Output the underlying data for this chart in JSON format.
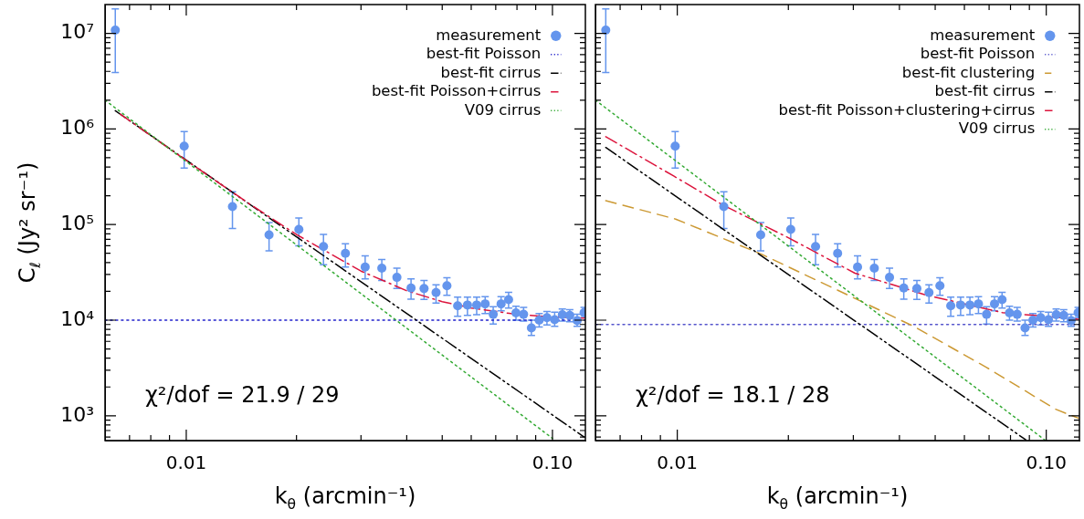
{
  "chart_data": [
    {
      "type": "scatter",
      "xlabel": "k$_{θ}$ (arcmin⁻¹)",
      "ylabel": "C$_{ℓ}$ (Jy² sr⁻¹)",
      "log": "xy",
      "xlim": [
        0.006,
        0.123
      ],
      "ylim": [
        550,
        20000000
      ],
      "xticks": [
        {
          "value": 0.007,
          "label": null
        },
        {
          "value": 0.008,
          "label": null
        },
        {
          "value": 0.009,
          "label": null
        },
        {
          "value": 0.01,
          "label": "0.01"
        },
        {
          "value": 0.02,
          "label": null
        },
        {
          "value": 0.03,
          "label": null
        },
        {
          "value": 0.04,
          "label": null
        },
        {
          "value": 0.05,
          "label": null
        },
        {
          "value": 0.06,
          "label": null
        },
        {
          "value": 0.07,
          "label": null
        },
        {
          "value": 0.08,
          "label": null
        },
        {
          "value": 0.09,
          "label": null
        },
        {
          "value": 0.1,
          "label": "0.10"
        }
      ],
      "yticks": [
        {
          "value": 600,
          "label": null
        },
        {
          "value": 700,
          "label": null
        },
        {
          "value": 800,
          "label": null
        },
        {
          "value": 900,
          "label": null
        },
        {
          "value": 1000,
          "label": "10³"
        },
        {
          "value": 2000,
          "label": null
        },
        {
          "value": 3000,
          "label": null
        },
        {
          "value": 4000,
          "label": null
        },
        {
          "value": 5000,
          "label": null
        },
        {
          "value": 6000,
          "label": null
        },
        {
          "value": 7000,
          "label": null
        },
        {
          "value": 8000,
          "label": null
        },
        {
          "value": 9000,
          "label": null
        },
        {
          "value": 10000,
          "label": "10⁴"
        },
        {
          "value": 20000,
          "label": null
        },
        {
          "value": 30000,
          "label": null
        },
        {
          "value": 40000,
          "label": null
        },
        {
          "value": 50000,
          "label": null
        },
        {
          "value": 60000,
          "label": null
        },
        {
          "value": 70000,
          "label": null
        },
        {
          "value": 80000,
          "label": null
        },
        {
          "value": 90000,
          "label": null
        },
        {
          "value": 100000,
          "label": "10⁵"
        },
        {
          "value": 200000,
          "label": null
        },
        {
          "value": 300000,
          "label": null
        },
        {
          "value": 400000,
          "label": null
        },
        {
          "value": 500000,
          "label": null
        },
        {
          "value": 600000,
          "label": null
        },
        {
          "value": 700000,
          "label": null
        },
        {
          "value": 800000,
          "label": null
        },
        {
          "value": 900000,
          "label": null
        },
        {
          "value": 1000000,
          "label": "10⁶"
        },
        {
          "value": 2000000,
          "label": null
        },
        {
          "value": 3000000,
          "label": null
        },
        {
          "value": 4000000,
          "label": null
        },
        {
          "value": 5000000,
          "label": null
        },
        {
          "value": 6000000,
          "label": null
        },
        {
          "value": 7000000,
          "label": null
        },
        {
          "value": 8000000,
          "label": null
        },
        {
          "value": 9000000,
          "label": null
        },
        {
          "value": 10000000,
          "label": "10⁷"
        }
      ],
      "legend": "top right",
      "annotations": [
        "χ²/dof = 21.9 / 29"
      ],
      "series": [
        {
          "name": "measurement",
          "type": "scatter",
          "marker": "circle",
          "color": "#6495ed",
          "x": [
            0.0064,
            0.00987,
            0.01337,
            0.01683,
            0.0203,
            0.0237,
            0.0272,
            0.0308,
            0.0342,
            0.0376,
            0.0411,
            0.0446,
            0.0481,
            0.0515,
            0.0551,
            0.0586,
            0.0621,
            0.0655,
            0.0689,
            0.0724,
            0.0759,
            0.0795,
            0.0834,
            0.0876,
            0.092,
            0.0966,
            0.1014,
            0.1064,
            0.1115,
            0.1168,
            0.122
          ],
          "values": [
            10800000,
            660000,
            154000,
            78000,
            89000,
            59000,
            50000,
            36000,
            35000,
            28000,
            21700,
            21400,
            19400,
            22900,
            14100,
            14400,
            14400,
            14800,
            11500,
            14800,
            16400,
            11900,
            11500,
            8300,
            10000,
            10600,
            10100,
            11400,
            11200,
            9900,
            12000
          ],
          "errors": [
            [
              3900000,
              18000000
            ],
            [
              390000,
              940000
            ],
            [
              91000,
              220000
            ],
            [
              53000,
              105000
            ],
            [
              60000,
              117000
            ],
            [
              38000,
              79000
            ],
            [
              36000,
              63000
            ],
            [
              27000,
              47000
            ],
            [
              26000,
              43000
            ],
            [
              21500,
              35000
            ],
            [
              16600,
              27000
            ],
            [
              16500,
              26000
            ],
            [
              15100,
              23400
            ],
            [
              18200,
              27700
            ],
            [
              11000,
              17400
            ],
            [
              11200,
              17400
            ],
            [
              11400,
              17400
            ],
            [
              11700,
              17600
            ],
            [
              9100,
              13800
            ],
            [
              12500,
              17600
            ],
            [
              13400,
              19500
            ],
            [
              10000,
              14000
            ],
            [
              9800,
              13600
            ],
            [
              6900,
              10000
            ],
            [
              8500,
              11700
            ],
            [
              8900,
              12300
            ],
            [
              8600,
              12100
            ],
            [
              9800,
              13100
            ],
            [
              9600,
              12900
            ],
            [
              8600,
              11500
            ],
            [
              10600,
              13600
            ]
          ]
        },
        {
          "name": "best-fit Poisson",
          "type": "line",
          "line_style": "dotted",
          "color": "#2222cc",
          "x": [
            0.006,
            0.123
          ],
          "values": [
            10000,
            10000
          ]
        },
        {
          "name": "best-fit cirrus",
          "type": "line",
          "line_style": "dashdotdot",
          "color": "#000000",
          "x": [
            0.0064,
            0.122
          ],
          "values": [
            1550000,
            600
          ]
        },
        {
          "name": "best-fit Poisson+cirrus",
          "type": "line",
          "line_style": "dashdot",
          "color": "#dc143c",
          "x": [
            0.0066,
            0.01,
            0.015,
            0.02,
            0.03,
            0.04,
            0.05,
            0.06,
            0.08,
            0.1,
            0.122
          ],
          "values": [
            1430000,
            468000,
            161000,
            78600,
            32600,
            20300,
            15600,
            13400,
            11500,
            10800,
            10500
          ]
        },
        {
          "name": "V09 cirrus",
          "type": "line",
          "line_style": "dotted",
          "color": "#33aa33",
          "x": [
            0.006,
            0.1
          ],
          "values": [
            2000000,
            580
          ]
        }
      ]
    },
    {
      "type": "scatter",
      "xlabel": "k$_{θ}$ (arcmin⁻¹)",
      "log": "xy",
      "xlim": [
        0.006,
        0.123
      ],
      "ylim": [
        550,
        20000000
      ],
      "tick_labels": "x",
      "xticks": [
        {
          "value": 0.007,
          "label": null
        },
        {
          "value": 0.008,
          "label": null
        },
        {
          "value": 0.009,
          "label": null
        },
        {
          "value": 0.01,
          "label": "0.01"
        },
        {
          "value": 0.02,
          "label": null
        },
        {
          "value": 0.03,
          "label": null
        },
        {
          "value": 0.04,
          "label": null
        },
        {
          "value": 0.05,
          "label": null
        },
        {
          "value": 0.06,
          "label": null
        },
        {
          "value": 0.07,
          "label": null
        },
        {
          "value": 0.08,
          "label": null
        },
        {
          "value": 0.09,
          "label": null
        },
        {
          "value": 0.1,
          "label": "0.10"
        }
      ],
      "legend": "top right",
      "annotations": [
        "χ²/dof = 18.1 / 28"
      ],
      "yticks": [
        {
          "value": 600,
          "label": null
        },
        {
          "value": 700,
          "label": null
        },
        {
          "value": 800,
          "label": null
        },
        {
          "value": 900,
          "label": null
        },
        {
          "value": 1000,
          "label": null
        },
        {
          "value": 2000,
          "label": null
        },
        {
          "value": 3000,
          "label": null
        },
        {
          "value": 4000,
          "label": null
        },
        {
          "value": 5000,
          "label": null
        },
        {
          "value": 6000,
          "label": null
        },
        {
          "value": 7000,
          "label": null
        },
        {
          "value": 8000,
          "label": null
        },
        {
          "value": 9000,
          "label": null
        },
        {
          "value": 10000,
          "label": null
        },
        {
          "value": 20000,
          "label": null
        },
        {
          "value": 30000,
          "label": null
        },
        {
          "value": 40000,
          "label": null
        },
        {
          "value": 50000,
          "label": null
        },
        {
          "value": 60000,
          "label": null
        },
        {
          "value": 70000,
          "label": null
        },
        {
          "value": 80000,
          "label": null
        },
        {
          "value": 90000,
          "label": null
        },
        {
          "value": 100000,
          "label": null
        },
        {
          "value": 200000,
          "label": null
        },
        {
          "value": 300000,
          "label": null
        },
        {
          "value": 400000,
          "label": null
        },
        {
          "value": 500000,
          "label": null
        },
        {
          "value": 600000,
          "label": null
        },
        {
          "value": 700000,
          "label": null
        },
        {
          "value": 800000,
          "label": null
        },
        {
          "value": 900000,
          "label": null
        },
        {
          "value": 1000000,
          "label": null
        },
        {
          "value": 2000000,
          "label": null
        },
        {
          "value": 3000000,
          "label": null
        },
        {
          "value": 4000000,
          "label": null
        },
        {
          "value": 5000000,
          "label": null
        },
        {
          "value": 6000000,
          "label": null
        },
        {
          "value": 7000000,
          "label": null
        },
        {
          "value": 8000000,
          "label": null
        },
        {
          "value": 9000000,
          "label": null
        },
        {
          "value": 10000000,
          "label": null
        }
      ],
      "series": [
        {
          "name": "measurement",
          "type": "scatter",
          "marker": "circle",
          "color": "#6495ed",
          "x": [
            0.0064,
            0.00987,
            0.01337,
            0.01683,
            0.0203,
            0.0237,
            0.0272,
            0.0308,
            0.0342,
            0.0376,
            0.0411,
            0.0446,
            0.0481,
            0.0515,
            0.0551,
            0.0586,
            0.0621,
            0.0655,
            0.0689,
            0.0724,
            0.0759,
            0.0795,
            0.0834,
            0.0876,
            0.092,
            0.0966,
            0.1014,
            0.1064,
            0.1115,
            0.1168,
            0.122
          ],
          "values": [
            10800000,
            660000,
            154000,
            78000,
            89000,
            59000,
            50000,
            36000,
            35000,
            28000,
            21700,
            21400,
            19400,
            22900,
            14100,
            14400,
            14400,
            14800,
            11500,
            14800,
            16400,
            11900,
            11500,
            8300,
            10000,
            10600,
            10100,
            11400,
            11200,
            9900,
            12000
          ],
          "errors": [
            [
              3900000,
              18000000
            ],
            [
              390000,
              940000
            ],
            [
              91000,
              220000
            ],
            [
              53000,
              105000
            ],
            [
              60000,
              117000
            ],
            [
              38000,
              79000
            ],
            [
              36000,
              63000
            ],
            [
              27000,
              47000
            ],
            [
              26000,
              43000
            ],
            [
              21500,
              35000
            ],
            [
              16600,
              27000
            ],
            [
              16500,
              26000
            ],
            [
              15100,
              23400
            ],
            [
              18200,
              27700
            ],
            [
              11000,
              17400
            ],
            [
              11200,
              17400
            ],
            [
              11400,
              17400
            ],
            [
              11700,
              17600
            ],
            [
              9100,
              13800
            ],
            [
              12500,
              17600
            ],
            [
              13400,
              19500
            ],
            [
              10000,
              14000
            ],
            [
              9800,
              13600
            ],
            [
              6900,
              10000
            ],
            [
              8500,
              11700
            ],
            [
              8900,
              12300
            ],
            [
              8600,
              12100
            ],
            [
              9800,
              13100
            ],
            [
              9600,
              12900
            ],
            [
              8600,
              11500
            ],
            [
              10600,
              13600
            ]
          ]
        },
        {
          "name": "best-fit Poisson",
          "type": "line",
          "line_style": "dotted",
          "color": "#5555cc",
          "x": [
            0.006,
            0.123
          ],
          "values": [
            9000,
            9000
          ]
        },
        {
          "name": "best-fit clustering",
          "type": "line",
          "line_style": "dashed",
          "color": "#cc9933",
          "x": [
            0.0064,
            0.0099,
            0.0169,
            0.0303,
            0.044,
            0.0689,
            0.106,
            0.122
          ],
          "values": [
            178000,
            114000,
            49000,
            16900,
            8500,
            3200,
            1170,
            945
          ]
        },
        {
          "name": "best-fit cirrus",
          "type": "line",
          "line_style": "dashdotdot",
          "color": "#000000",
          "x": [
            0.0064,
            0.088
          ],
          "values": [
            640000,
            560
          ]
        },
        {
          "name": "best-fit Poisson+clustering+cirrus",
          "type": "line",
          "line_style": "dashdot",
          "color": "#dc143c",
          "x": [
            0.0064,
            0.0098,
            0.0133,
            0.0201,
            0.0303,
            0.0475,
            0.076,
            0.122
          ],
          "values": [
            830000,
            320000,
            160000,
            72000,
            31000,
            18200,
            12000,
            10200
          ]
        },
        {
          "name": "V09 cirrus",
          "type": "line",
          "line_style": "dotted",
          "color": "#33aa33",
          "x": [
            0.006,
            0.099
          ],
          "values": [
            2000000,
            560
          ]
        }
      ]
    }
  ]
}
